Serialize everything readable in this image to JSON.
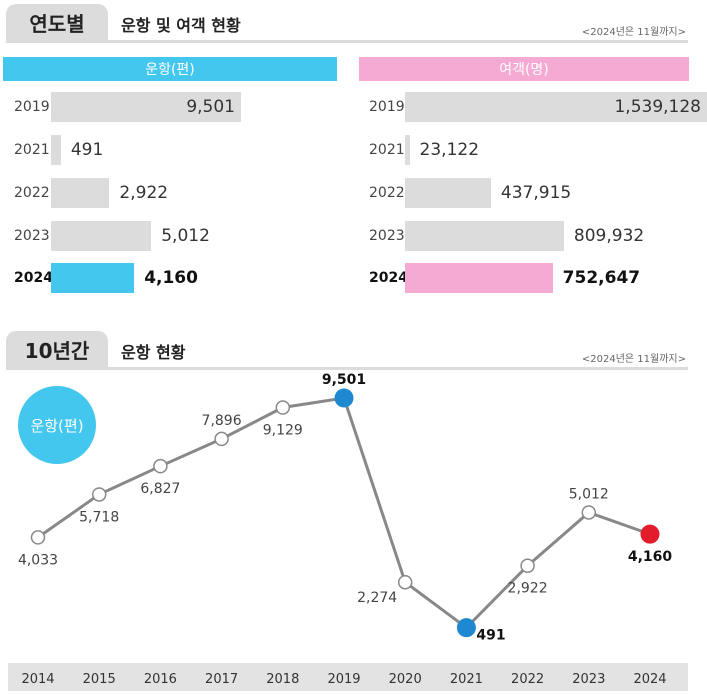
{
  "section1": {
    "tag": "연도별",
    "title": "운항 및 여객 현황",
    "note": "<2024년은 11월까지>"
  },
  "section2": {
    "tag": "10년간",
    "title": "운항 현황",
    "note": "<2024년은 11월까지>",
    "badge": "운항(편)"
  },
  "colors": {
    "flights": "#44c7ef",
    "passengers": "#f4aad2",
    "bar_gray": "#dcdcdc",
    "highlight_dot": "#e31c2b",
    "max_dot": "#1e88d1"
  },
  "chart_data": [
    {
      "type": "bar",
      "orientation": "horizontal",
      "title": "운항(편)",
      "categories": [
        "2019",
        "2021",
        "2022",
        "2023",
        "2024"
      ],
      "values": [
        9501,
        491,
        2922,
        5012,
        4160
      ],
      "labels": [
        "9,501",
        "491",
        "2,922",
        "5,012",
        "4,160"
      ],
      "highlight": "2024",
      "xlim": [
        0,
        9501
      ]
    },
    {
      "type": "bar",
      "orientation": "horizontal",
      "title": "여객(명)",
      "categories": [
        "2019",
        "2021",
        "2022",
        "2023",
        "2024"
      ],
      "values": [
        1539128,
        23122,
        437915,
        809932,
        752647
      ],
      "labels": [
        "1,539,128",
        "23,122",
        "437,915",
        "809,932",
        "752,647"
      ],
      "highlight": "2024",
      "xlim": [
        0,
        1539128
      ]
    },
    {
      "type": "line",
      "title": "",
      "x": [
        "2014",
        "2015",
        "2016",
        "2017",
        "2018",
        "2019",
        "2020",
        "2021",
        "2022",
        "2023",
        "2024"
      ],
      "values": [
        4033,
        5718,
        6827,
        7896,
        9129,
        9501,
        2274,
        491,
        2922,
        5012,
        4160
      ],
      "labels": [
        "4,033",
        "5,718",
        "6,827",
        "7,896",
        "9,129",
        "9,501",
        "2,274",
        "491",
        "2,922",
        "5,012",
        "4,160"
      ],
      "label_pos": [
        "below",
        "below",
        "below",
        "above",
        "below",
        "above",
        "left",
        "right",
        "below",
        "above",
        "below"
      ],
      "max_points": [
        "2019",
        "2021"
      ],
      "highlight": "2024"
    }
  ]
}
